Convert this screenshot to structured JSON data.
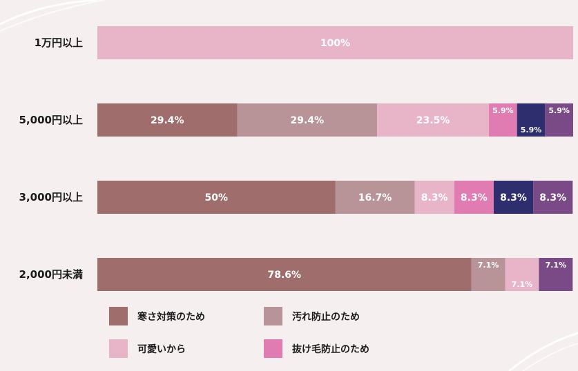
{
  "chart_data": {
    "type": "bar",
    "orientation": "horizontal",
    "stacked": true,
    "categories": [
      "1万円以上",
      "5,000円以上",
      "3,000円以上",
      "2,000円未満"
    ],
    "series": [
      {
        "name": "寒さ対策のため",
        "color": "#a06d6d",
        "values": [
          0,
          29.4,
          50,
          78.6
        ]
      },
      {
        "name": "汚れ防止のため",
        "color": "#b89499",
        "values": [
          0,
          29.4,
          16.7,
          7.1
        ]
      },
      {
        "name": "可愛いから",
        "color": "#e8b4c8",
        "values": [
          100,
          23.5,
          8.3,
          7.1
        ]
      },
      {
        "name": "抜け毛防止のため",
        "color": "#e07cb2",
        "values": [
          0,
          5.9,
          8.3,
          0
        ]
      },
      {
        "name": "",
        "color": "#2e2e6e",
        "values": [
          0,
          5.9,
          8.3,
          0
        ]
      },
      {
        "name": "",
        "color": "#7a4a86",
        "values": [
          0,
          5.9,
          8.3,
          7.1
        ]
      }
    ],
    "data_labels": [
      [
        "",
        "",
        "100%",
        "",
        "",
        ""
      ],
      [
        "29.4%",
        "29.4%",
        "23.5%",
        "5.9%",
        "5.9%",
        "5.9%"
      ],
      [
        "50%",
        "16.7%",
        "8.3%",
        "8.3%",
        "8.3%",
        "8.3%"
      ],
      [
        "78.6%",
        "7.1%",
        "7.1%",
        "",
        "",
        "7.1%"
      ]
    ],
    "xlim": [
      0,
      100
    ],
    "grid": false,
    "legend_position": "bottom"
  },
  "legend": {
    "items": [
      {
        "label": "寒さ対策のため",
        "color": "#a06d6d"
      },
      {
        "label": "汚れ防止のため",
        "color": "#b89499"
      },
      {
        "label": "可愛いから",
        "color": "#e8b4c8"
      },
      {
        "label": "抜け毛防止のため",
        "color": "#e07cb2"
      }
    ]
  }
}
